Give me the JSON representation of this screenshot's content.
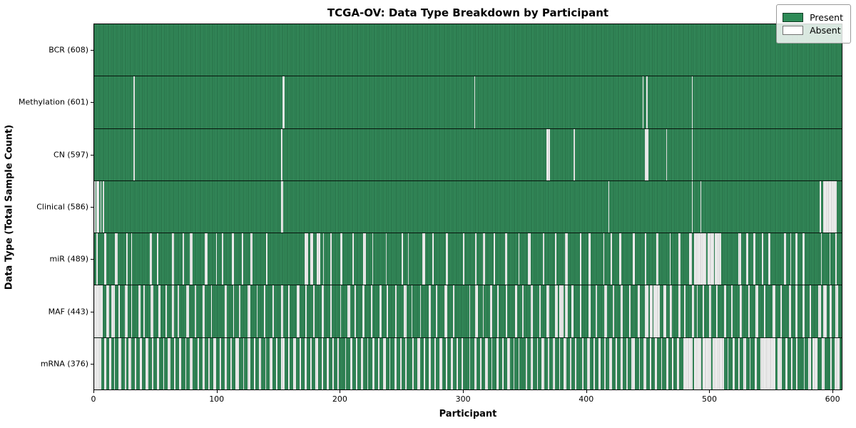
{
  "figure": {
    "title": "TCGA-OV: Data Type Breakdown by Participant",
    "xlabel": "Participant",
    "ylabel": "Data Type (Total Sample Count)"
  },
  "chart_data": {
    "type": "heatmap",
    "title": "TCGA-OV: Data Type Breakdown by Participant",
    "xlabel": "Participant",
    "ylabel": "Data Type (Total Sample Count)",
    "n_participants": 608,
    "xlim": [
      0,
      608
    ],
    "x_ticks": [
      0,
      100,
      200,
      300,
      400,
      500,
      600
    ],
    "grid": false,
    "legend_position": "upper right",
    "legend_items": [
      {
        "label": "Present",
        "color": "#2e8b57"
      },
      {
        "label": "Absent",
        "color": "#ffffff"
      }
    ],
    "colors": {
      "present": "#2e8b57",
      "absent": "#ffffff",
      "row_divider": "#000000"
    },
    "rows": [
      {
        "label": "BCR (608)",
        "data_type": "BCR",
        "present_count": 608,
        "absent_runs": []
      },
      {
        "label": "Methylation (601)",
        "data_type": "Methylation",
        "present_count": 601,
        "absent_runs": [
          [
            32,
            1
          ],
          [
            153,
            2
          ],
          [
            309,
            1
          ],
          [
            446,
            1
          ],
          [
            449,
            1
          ],
          [
            486,
            1
          ]
        ]
      },
      {
        "label": "CN (597)",
        "data_type": "CN",
        "present_count": 597,
        "absent_runs": [
          [
            32,
            1
          ],
          [
            152,
            1
          ],
          [
            368,
            3
          ],
          [
            390,
            1
          ],
          [
            448,
            3
          ],
          [
            465,
            1
          ],
          [
            486,
            1
          ]
        ]
      },
      {
        "label": "Clinical (586)",
        "data_type": "Clinical",
        "present_count": 586,
        "absent_runs": [
          [
            0,
            1
          ],
          [
            2,
            2
          ],
          [
            5,
            1
          ],
          [
            7,
            1
          ],
          [
            152,
            2
          ],
          [
            418,
            1
          ],
          [
            486,
            1
          ],
          [
            493,
            1
          ],
          [
            590,
            1
          ],
          [
            593,
            11
          ]
        ]
      },
      {
        "label": "miR (489)",
        "data_type": "miR",
        "present_count": 489,
        "absent_runs": [
          [
            2,
            1
          ],
          [
            8,
            2
          ],
          [
            17,
            2
          ],
          [
            26,
            1
          ],
          [
            30,
            1
          ],
          [
            45,
            2
          ],
          [
            51,
            1
          ],
          [
            63,
            2
          ],
          [
            72,
            1
          ],
          [
            78,
            2
          ],
          [
            90,
            2
          ],
          [
            99,
            1
          ],
          [
            104,
            1
          ],
          [
            112,
            2
          ],
          [
            120,
            1
          ],
          [
            127,
            2
          ],
          [
            140,
            1
          ],
          [
            171,
            3
          ],
          [
            176,
            2
          ],
          [
            181,
            3
          ],
          [
            186,
            1
          ],
          [
            192,
            1
          ],
          [
            200,
            2
          ],
          [
            210,
            1
          ],
          [
            219,
            2
          ],
          [
            226,
            1
          ],
          [
            237,
            1
          ],
          [
            250,
            1
          ],
          [
            255,
            1
          ],
          [
            267,
            2
          ],
          [
            275,
            1
          ],
          [
            286,
            2
          ],
          [
            300,
            1
          ],
          [
            310,
            1
          ],
          [
            316,
            2
          ],
          [
            325,
            1
          ],
          [
            334,
            2
          ],
          [
            345,
            1
          ],
          [
            353,
            2
          ],
          [
            365,
            1
          ],
          [
            375,
            1
          ],
          [
            383,
            2
          ],
          [
            395,
            1
          ],
          [
            402,
            2
          ],
          [
            414,
            1
          ],
          [
            420,
            1
          ],
          [
            427,
            2
          ],
          [
            438,
            2
          ],
          [
            448,
            1
          ],
          [
            457,
            2
          ],
          [
            468,
            1
          ],
          [
            475,
            2
          ],
          [
            484,
            2
          ],
          [
            488,
            10
          ],
          [
            499,
            5
          ],
          [
            505,
            5
          ],
          [
            524,
            2
          ],
          [
            530,
            2
          ],
          [
            536,
            2
          ],
          [
            543,
            1
          ],
          [
            548,
            2
          ],
          [
            561,
            2
          ],
          [
            566,
            1
          ],
          [
            570,
            2
          ],
          [
            576,
            2
          ],
          [
            591,
            1
          ],
          [
            598,
            1
          ],
          [
            603,
            1
          ]
        ]
      },
      {
        "label": "MAF (443)",
        "data_type": "MAF",
        "present_count": 443,
        "absent_runs": [
          [
            0,
            7
          ],
          [
            10,
            2
          ],
          [
            14,
            3
          ],
          [
            20,
            1
          ],
          [
            25,
            2
          ],
          [
            30,
            1
          ],
          [
            36,
            2
          ],
          [
            40,
            1
          ],
          [
            46,
            2
          ],
          [
            52,
            2
          ],
          [
            58,
            1
          ],
          [
            63,
            2
          ],
          [
            68,
            1
          ],
          [
            75,
            2
          ],
          [
            82,
            1
          ],
          [
            88,
            2
          ],
          [
            95,
            1
          ],
          [
            106,
            2
          ],
          [
            113,
            1
          ],
          [
            118,
            1
          ],
          [
            125,
            2
          ],
          [
            132,
            1
          ],
          [
            138,
            1
          ],
          [
            145,
            1
          ],
          [
            152,
            2
          ],
          [
            158,
            1
          ],
          [
            165,
            2
          ],
          [
            172,
            1
          ],
          [
            178,
            1
          ],
          [
            185,
            2
          ],
          [
            192,
            1
          ],
          [
            200,
            1
          ],
          [
            206,
            2
          ],
          [
            212,
            1
          ],
          [
            218,
            2
          ],
          [
            225,
            1
          ],
          [
            232,
            2
          ],
          [
            238,
            1
          ],
          [
            245,
            1
          ],
          [
            252,
            2
          ],
          [
            258,
            1
          ],
          [
            265,
            1
          ],
          [
            272,
            2
          ],
          [
            278,
            1
          ],
          [
            285,
            2
          ],
          [
            292,
            1
          ],
          [
            305,
            1
          ],
          [
            310,
            2
          ],
          [
            316,
            1
          ],
          [
            322,
            2
          ],
          [
            328,
            1
          ],
          [
            335,
            1
          ],
          [
            342,
            2
          ],
          [
            348,
            1
          ],
          [
            355,
            2
          ],
          [
            362,
            1
          ],
          [
            368,
            2
          ],
          [
            375,
            2
          ],
          [
            378,
            4
          ],
          [
            383,
            2
          ],
          [
            388,
            2
          ],
          [
            395,
            1
          ],
          [
            402,
            2
          ],
          [
            408,
            1
          ],
          [
            415,
            2
          ],
          [
            422,
            1
          ],
          [
            428,
            2
          ],
          [
            435,
            1
          ],
          [
            442,
            2
          ],
          [
            448,
            3
          ],
          [
            452,
            2
          ],
          [
            455,
            3
          ],
          [
            458,
            2
          ],
          [
            463,
            2
          ],
          [
            468,
            2
          ],
          [
            475,
            2
          ],
          [
            480,
            1
          ],
          [
            486,
            2
          ],
          [
            490,
            1
          ],
          [
            495,
            1
          ],
          [
            500,
            2
          ],
          [
            506,
            1
          ],
          [
            512,
            2
          ],
          [
            518,
            1
          ],
          [
            525,
            2
          ],
          [
            532,
            1
          ],
          [
            538,
            2
          ],
          [
            545,
            1
          ],
          [
            552,
            2
          ],
          [
            558,
            1
          ],
          [
            565,
            2
          ],
          [
            570,
            2
          ],
          [
            576,
            2
          ],
          [
            582,
            1
          ],
          [
            589,
            2
          ],
          [
            593,
            3
          ],
          [
            598,
            2
          ],
          [
            603,
            2
          ]
        ]
      },
      {
        "label": "mRNA (376)",
        "data_type": "mRNA",
        "present_count": 376,
        "absent_runs": [
          [
            0,
            6
          ],
          [
            8,
            2
          ],
          [
            12,
            2
          ],
          [
            16,
            1
          ],
          [
            20,
            2
          ],
          [
            25,
            1
          ],
          [
            28,
            2
          ],
          [
            33,
            1
          ],
          [
            37,
            2
          ],
          [
            42,
            2
          ],
          [
            47,
            1
          ],
          [
            51,
            2
          ],
          [
            56,
            1
          ],
          [
            60,
            2
          ],
          [
            65,
            1
          ],
          [
            69,
            2
          ],
          [
            74,
            1
          ],
          [
            78,
            2
          ],
          [
            84,
            1
          ],
          [
            88,
            2
          ],
          [
            93,
            1
          ],
          [
            97,
            2
          ],
          [
            102,
            1
          ],
          [
            106,
            2
          ],
          [
            111,
            1
          ],
          [
            115,
            3
          ],
          [
            121,
            1
          ],
          [
            125,
            2
          ],
          [
            130,
            1
          ],
          [
            134,
            2
          ],
          [
            139,
            1
          ],
          [
            143,
            2
          ],
          [
            148,
            1
          ],
          [
            152,
            3
          ],
          [
            158,
            1
          ],
          [
            162,
            2
          ],
          [
            167,
            1
          ],
          [
            171,
            2
          ],
          [
            176,
            1
          ],
          [
            180,
            2
          ],
          [
            185,
            1
          ],
          [
            189,
            2
          ],
          [
            194,
            1
          ],
          [
            198,
            1
          ],
          [
            204,
            1
          ],
          [
            208,
            2
          ],
          [
            213,
            1
          ],
          [
            217,
            2
          ],
          [
            222,
            1
          ],
          [
            226,
            2
          ],
          [
            231,
            1
          ],
          [
            235,
            2
          ],
          [
            240,
            1
          ],
          [
            244,
            2
          ],
          [
            249,
            1
          ],
          [
            253,
            1
          ],
          [
            259,
            1
          ],
          [
            263,
            2
          ],
          [
            268,
            1
          ],
          [
            272,
            2
          ],
          [
            277,
            1
          ],
          [
            281,
            2
          ],
          [
            286,
            1
          ],
          [
            290,
            2
          ],
          [
            295,
            1
          ],
          [
            299,
            1
          ],
          [
            305,
            1
          ],
          [
            309,
            2
          ],
          [
            314,
            1
          ],
          [
            318,
            2
          ],
          [
            323,
            1
          ],
          [
            327,
            2
          ],
          [
            332,
            1
          ],
          [
            336,
            2
          ],
          [
            341,
            1
          ],
          [
            345,
            1
          ],
          [
            351,
            1
          ],
          [
            355,
            2
          ],
          [
            360,
            1
          ],
          [
            364,
            2
          ],
          [
            369,
            1
          ],
          [
            373,
            2
          ],
          [
            378,
            1
          ],
          [
            382,
            2
          ],
          [
            387,
            1
          ],
          [
            391,
            1
          ],
          [
            397,
            1
          ],
          [
            401,
            2
          ],
          [
            406,
            1
          ],
          [
            410,
            2
          ],
          [
            415,
            1
          ],
          [
            419,
            2
          ],
          [
            424,
            1
          ],
          [
            428,
            2
          ],
          [
            433,
            1
          ],
          [
            437,
            3
          ],
          [
            443,
            1
          ],
          [
            447,
            2
          ],
          [
            452,
            1
          ],
          [
            456,
            2
          ],
          [
            461,
            1
          ],
          [
            465,
            2
          ],
          [
            470,
            1
          ],
          [
            474,
            2
          ],
          [
            479,
            8
          ],
          [
            488,
            6
          ],
          [
            495,
            7
          ],
          [
            503,
            9
          ],
          [
            515,
            1
          ],
          [
            519,
            2
          ],
          [
            524,
            1
          ],
          [
            528,
            2
          ],
          [
            533,
            1
          ],
          [
            537,
            2
          ],
          [
            542,
            12
          ],
          [
            556,
            2
          ],
          [
            558,
            1
          ],
          [
            562,
            2
          ],
          [
            567,
            1
          ],
          [
            571,
            1
          ],
          [
            577,
            1
          ],
          [
            581,
            2
          ],
          [
            584,
            4
          ],
          [
            592,
            2
          ],
          [
            599,
            1
          ],
          [
            602,
            4
          ]
        ]
      }
    ]
  }
}
